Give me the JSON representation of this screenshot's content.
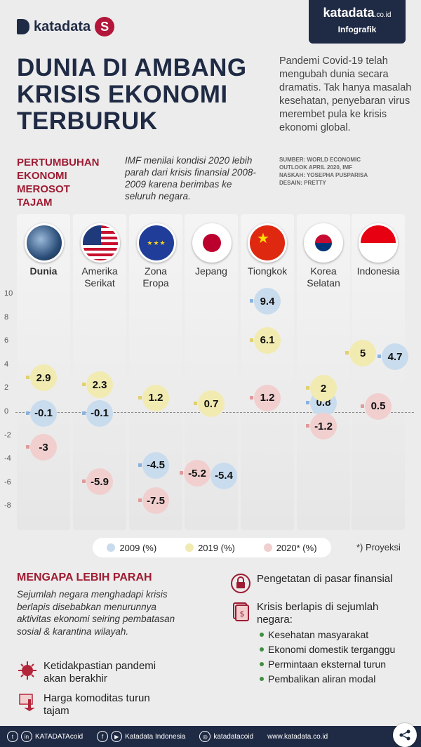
{
  "brand": {
    "logo_text": "katadata",
    "badge_name": "katadata",
    "badge_suffix": ".co.id",
    "badge_label": "Infografik"
  },
  "title": [
    "DUNIA DI AMBANG",
    "KRISIS EKONOMI",
    "TERBURUK"
  ],
  "intro": "Pandemi Covid-19 telah mengubah dunia secara dramatis. Tak hanya masalah kesehatan, penyebaran virus merembet pula ke krisis ekonomi global.",
  "source": [
    "SUMBER: WORLD ECONOMIC",
    "OUTLOOK APRIL 2020, IMF",
    "NASKAH: YOSEPHA PUSPARISA",
    "DESAIN: PRETTY"
  ],
  "subhead": [
    "PERTUMBUHAN",
    "EKONOMI",
    "MEROSOT",
    "TAJAM"
  ],
  "imf_note": "IMF menilai kondisi 2020 lebih parah dari krisis finansial 2008-2009 karena berimbas ke seluruh negara.",
  "chart_data": {
    "type": "scatter",
    "categories": [
      "Dunia",
      "Amerika Serikat",
      "Zona Eropa",
      "Jepang",
      "Tiongkok",
      "Korea Selatan",
      "Indonesia"
    ],
    "y_ticks": [
      "10",
      "8",
      "6",
      "4",
      "2",
      "0",
      "-2",
      "-4",
      "-6",
      "-8"
    ],
    "ylim": [
      -8,
      10
    ],
    "series": [
      {
        "name": "2009 (%)",
        "color": "#c9dcee",
        "values": [
          -0.1,
          -0.1,
          -4.5,
          -5.4,
          9.4,
          0.8,
          4.7
        ],
        "labels": [
          "-0.1",
          "-0.1",
          "-4.5",
          "-5.4",
          "9.4",
          "0.8",
          "4.7"
        ]
      },
      {
        "name": "2019 (%)",
        "color": "#f1ebb1",
        "values": [
          2.9,
          2.3,
          1.2,
          0.7,
          6.1,
          2,
          5
        ],
        "labels": [
          "2.9",
          "2.3",
          "1.2",
          "0.7",
          "6.1",
          "2",
          "5"
        ]
      },
      {
        "name": "2020* (%)",
        "color": "#f1cfcf",
        "values": [
          -3,
          -5.9,
          -7.5,
          -5.2,
          1.2,
          -1.2,
          0.5
        ],
        "labels": [
          "-3",
          "-5.9",
          "-7.5",
          "-5.2",
          "1.2",
          "-1.2",
          "0.5"
        ]
      }
    ]
  },
  "countries": [
    {
      "line1": "Dunia",
      "line2": ""
    },
    {
      "line1": "Amerika",
      "line2": "Serikat"
    },
    {
      "line1": "Zona",
      "line2": "Eropa"
    },
    {
      "line1": "Jepang",
      "line2": ""
    },
    {
      "line1": "Tiongkok",
      "line2": ""
    },
    {
      "line1": "Korea",
      "line2": "Selatan"
    },
    {
      "line1": "Indonesia",
      "line2": ""
    }
  ],
  "legend": [
    "2009 (%)",
    "2019 (%)",
    "2020* (%)"
  ],
  "projection_note": "*) Proyeksi",
  "why": {
    "heading": "MENGAPA LEBIH PARAH",
    "text": "Sejumlah negara menghadapi krisis berlapis disebabkan menurunnya aktivitas ekonomi seiring pembatasan sosial & karantina wilayah.",
    "reasons_left": [
      {
        "icon": "virus-icon",
        "text": "Ketidakpastian pandemi akan berakhir"
      },
      {
        "icon": "price-down-icon",
        "text": "Harga komoditas turun tajam"
      }
    ],
    "reasons_right": [
      {
        "icon": "lock-icon",
        "text": "Pengetatan di pasar finansial"
      },
      {
        "icon": "layers-icon",
        "text": "Krisis berlapis di sejumlah negara:"
      }
    ],
    "bullets": [
      "Kesehatan masyarakat",
      "Ekonomi domestik terganggu",
      "Permintaan eksternal turun",
      "Pembalikan aliran modal"
    ]
  },
  "footer": {
    "handle1": "KATADATAcoid",
    "handle2": "Katadata Indonesia",
    "handle3": "katadatacoid",
    "site": "www.katadata.co.id"
  }
}
